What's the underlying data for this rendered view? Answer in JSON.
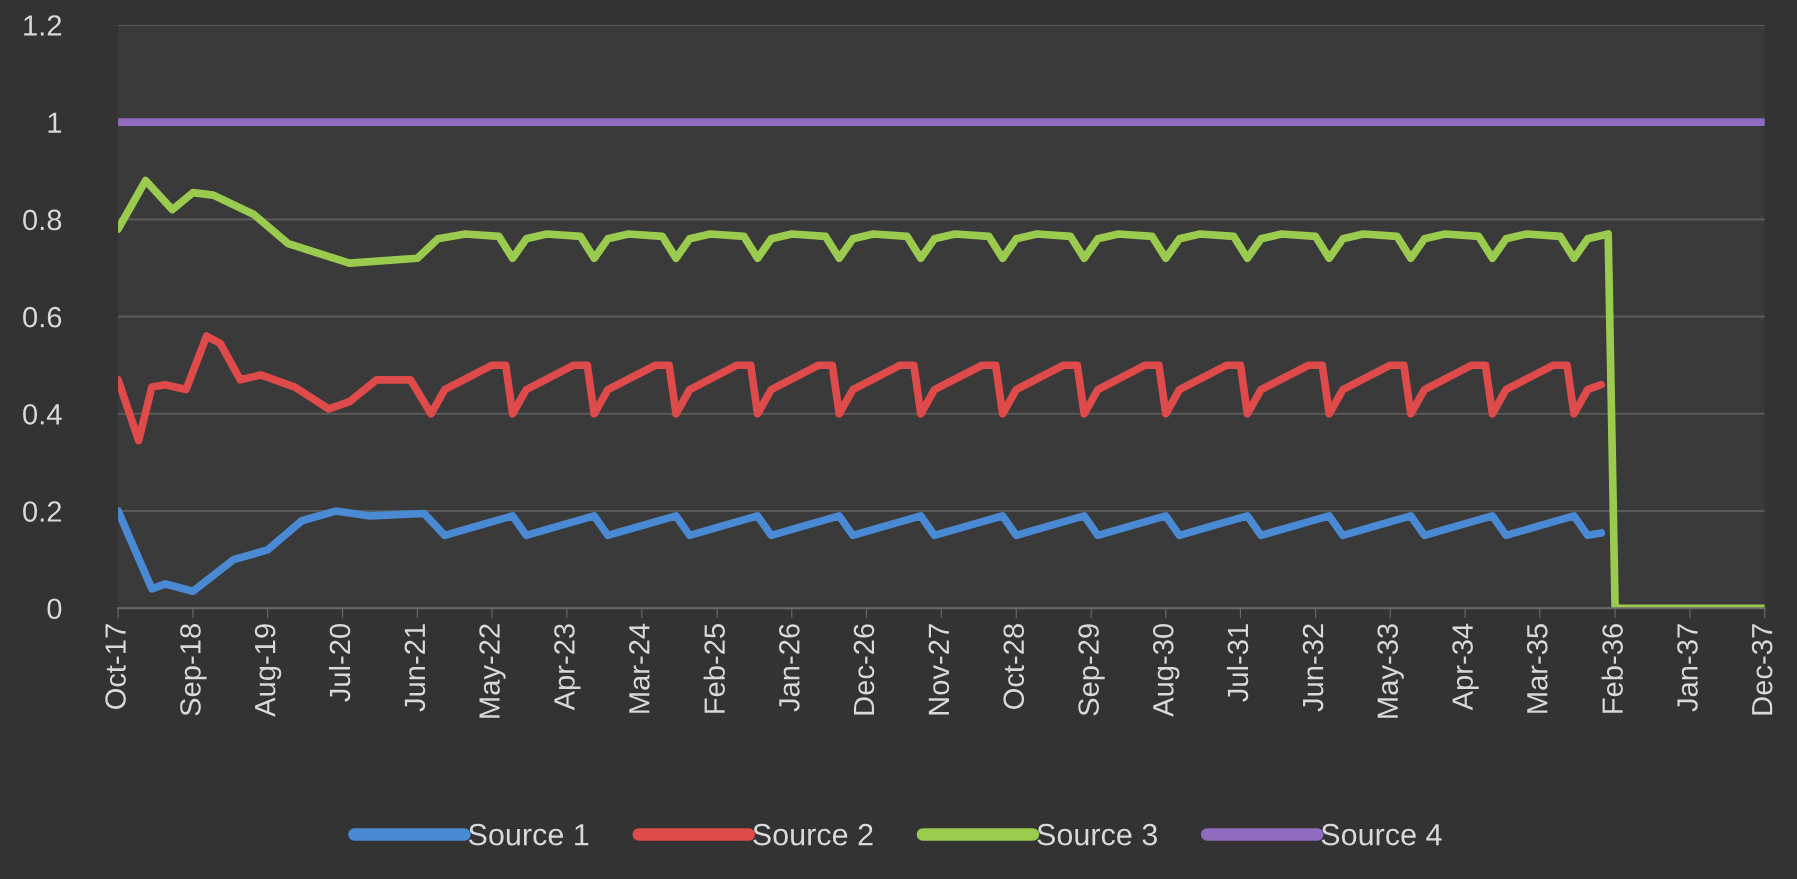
{
  "chart_data": {
    "type": "line",
    "xlim": [
      "2017-10",
      "2037-12"
    ],
    "xticks": [
      {
        "value": "2017-10",
        "label": "Oct-17"
      },
      {
        "value": "2018-09",
        "label": "Sep-18"
      },
      {
        "value": "2019-08",
        "label": "Aug-19"
      },
      {
        "value": "2020-07",
        "label": "Jul-20"
      },
      {
        "value": "2021-06",
        "label": "Jun-21"
      },
      {
        "value": "2022-05",
        "label": "May-22"
      },
      {
        "value": "2023-04",
        "label": "Apr-23"
      },
      {
        "value": "2024-03",
        "label": "Mar-24"
      },
      {
        "value": "2025-02",
        "label": "Feb-25"
      },
      {
        "value": "2026-01",
        "label": "Jan-26"
      },
      {
        "value": "2026-12",
        "label": "Dec-26"
      },
      {
        "value": "2027-11",
        "label": "Nov-27"
      },
      {
        "value": "2028-10",
        "label": "Oct-28"
      },
      {
        "value": "2029-09",
        "label": "Sep-29"
      },
      {
        "value": "2030-08",
        "label": "Aug-30"
      },
      {
        "value": "2031-07",
        "label": "Jul-31"
      },
      {
        "value": "2032-06",
        "label": "Jun-32"
      },
      {
        "value": "2033-05",
        "label": "May-33"
      },
      {
        "value": "2034-04",
        "label": "Apr-34"
      },
      {
        "value": "2035-03",
        "label": "Mar-35"
      },
      {
        "value": "2036-02",
        "label": "Feb-36"
      },
      {
        "value": "2037-01",
        "label": "Jan-37"
      },
      {
        "value": "2037-12",
        "label": "Dec-37"
      }
    ],
    "ylim": [
      0,
      1.2
    ],
    "yticks": [
      0,
      0.2,
      0.4,
      0.6,
      0.8,
      1,
      1.2
    ],
    "grid": "y",
    "legend": "bottom",
    "marker": "none",
    "line_style": "solid",
    "series": [
      {
        "name": "Source 1",
        "color": "#4a8ad4",
        "x": [
          "2017-10",
          "2018-03",
          "2018-05",
          "2018-09",
          "2019-03",
          "2019-08",
          "2020-01",
          "2020-06",
          "2020-11",
          "2021-07",
          "2021-10",
          "2022-03",
          "2022-08",
          "2022-10",
          "2023-03",
          "2023-08",
          "2023-10",
          "2024-03",
          "2024-08",
          "2024-10",
          "2025-03",
          "2025-08",
          "2025-10",
          "2026-03",
          "2026-08",
          "2026-10",
          "2027-03",
          "2027-08",
          "2027-10",
          "2028-03",
          "2028-08",
          "2028-10",
          "2029-03",
          "2029-08",
          "2029-10",
          "2030-03",
          "2030-08",
          "2030-10",
          "2031-03",
          "2031-08",
          "2031-10",
          "2032-03",
          "2032-08",
          "2032-10",
          "2033-03",
          "2033-08",
          "2033-10",
          "2034-03",
          "2034-08",
          "2034-10",
          "2035-03",
          "2035-08",
          "2035-10",
          "2035-12"
        ],
        "values": [
          0.2,
          0.04,
          0.05,
          0.035,
          0.1,
          0.12,
          0.18,
          0.2,
          0.19,
          0.195,
          0.15,
          0.17,
          0.19,
          0.15,
          0.17,
          0.19,
          0.15,
          0.17,
          0.19,
          0.15,
          0.17,
          0.19,
          0.15,
          0.17,
          0.19,
          0.15,
          0.17,
          0.19,
          0.15,
          0.17,
          0.19,
          0.15,
          0.17,
          0.19,
          0.15,
          0.17,
          0.19,
          0.15,
          0.17,
          0.19,
          0.15,
          0.17,
          0.19,
          0.15,
          0.17,
          0.19,
          0.15,
          0.17,
          0.19,
          0.15,
          0.17,
          0.19,
          0.15,
          0.155
        ]
      },
      {
        "name": "Source 2",
        "color": "#df4b4b",
        "x": [
          "2017-10",
          "2018-01",
          "2018-03",
          "2018-05",
          "2018-08",
          "2018-11",
          "2019-01",
          "2019-04",
          "2019-07",
          "2019-12",
          "2020-05",
          "2020-08",
          "2020-12",
          "2021-05",
          "2021-08",
          "2021-10",
          "2022-05",
          "2022-07",
          "2022-08",
          "2022-10",
          "2023-05",
          "2023-07",
          "2023-08",
          "2023-10",
          "2024-05",
          "2024-07",
          "2024-08",
          "2024-10",
          "2025-05",
          "2025-07",
          "2025-08",
          "2025-10",
          "2026-05",
          "2026-07",
          "2026-08",
          "2026-10",
          "2027-05",
          "2027-07",
          "2027-08",
          "2027-10",
          "2028-05",
          "2028-07",
          "2028-08",
          "2028-10",
          "2029-05",
          "2029-07",
          "2029-08",
          "2029-10",
          "2030-05",
          "2030-07",
          "2030-08",
          "2030-10",
          "2031-05",
          "2031-07",
          "2031-08",
          "2031-10",
          "2032-05",
          "2032-07",
          "2032-08",
          "2032-10",
          "2033-05",
          "2033-07",
          "2033-08",
          "2033-10",
          "2034-05",
          "2034-07",
          "2034-08",
          "2034-10",
          "2035-05",
          "2035-07",
          "2035-08",
          "2035-10",
          "2035-12"
        ],
        "values": [
          0.47,
          0.345,
          0.455,
          0.46,
          0.45,
          0.56,
          0.545,
          0.47,
          0.48,
          0.455,
          0.41,
          0.425,
          0.47,
          0.47,
          0.4,
          0.45,
          0.5,
          0.5,
          0.4,
          0.45,
          0.5,
          0.5,
          0.4,
          0.45,
          0.5,
          0.5,
          0.4,
          0.45,
          0.5,
          0.5,
          0.4,
          0.45,
          0.5,
          0.5,
          0.4,
          0.45,
          0.5,
          0.5,
          0.4,
          0.45,
          0.5,
          0.5,
          0.4,
          0.45,
          0.5,
          0.5,
          0.4,
          0.45,
          0.5,
          0.5,
          0.4,
          0.45,
          0.5,
          0.5,
          0.4,
          0.45,
          0.5,
          0.5,
          0.4,
          0.45,
          0.5,
          0.5,
          0.4,
          0.45,
          0.5,
          0.5,
          0.4,
          0.45,
          0.5,
          0.5,
          0.4,
          0.45,
          0.46
        ]
      },
      {
        "name": "Source 3",
        "color": "#9bcb4e",
        "x": [
          "2017-10",
          "2018-02",
          "2018-06",
          "2018-09",
          "2018-12",
          "2019-06",
          "2019-11",
          "2020-08",
          "2021-06",
          "2021-09",
          "2022-01",
          "2022-06",
          "2022-08",
          "2022-10",
          "2023-01",
          "2023-06",
          "2023-08",
          "2023-10",
          "2024-01",
          "2024-06",
          "2024-08",
          "2024-10",
          "2025-01",
          "2025-06",
          "2025-08",
          "2025-10",
          "2026-01",
          "2026-06",
          "2026-08",
          "2026-10",
          "2027-01",
          "2027-06",
          "2027-08",
          "2027-10",
          "2028-01",
          "2028-06",
          "2028-08",
          "2028-10",
          "2029-01",
          "2029-06",
          "2029-08",
          "2029-10",
          "2030-01",
          "2030-06",
          "2030-08",
          "2030-10",
          "2031-01",
          "2031-06",
          "2031-08",
          "2031-10",
          "2032-01",
          "2032-06",
          "2032-08",
          "2032-10",
          "2033-01",
          "2033-06",
          "2033-08",
          "2033-10",
          "2034-01",
          "2034-06",
          "2034-08",
          "2034-10",
          "2035-01",
          "2035-06",
          "2035-08",
          "2035-10",
          "2036-01",
          "2036-02",
          "2037-12"
        ],
        "values": [
          0.78,
          0.88,
          0.82,
          0.855,
          0.85,
          0.81,
          0.75,
          0.71,
          0.72,
          0.76,
          0.77,
          0.765,
          0.72,
          0.76,
          0.77,
          0.765,
          0.72,
          0.76,
          0.77,
          0.765,
          0.72,
          0.76,
          0.77,
          0.765,
          0.72,
          0.76,
          0.77,
          0.765,
          0.72,
          0.76,
          0.77,
          0.765,
          0.72,
          0.76,
          0.77,
          0.765,
          0.72,
          0.76,
          0.77,
          0.765,
          0.72,
          0.76,
          0.77,
          0.765,
          0.72,
          0.76,
          0.77,
          0.765,
          0.72,
          0.76,
          0.77,
          0.765,
          0.72,
          0.76,
          0.77,
          0.765,
          0.72,
          0.76,
          0.77,
          0.765,
          0.72,
          0.76,
          0.77,
          0.765,
          0.72,
          0.76,
          0.77,
          0,
          0
        ]
      },
      {
        "name": "Source 4",
        "color": "#8f6cc0",
        "x": [
          "2017-10",
          "2037-12"
        ],
        "values": [
          1,
          1
        ]
      }
    ]
  }
}
